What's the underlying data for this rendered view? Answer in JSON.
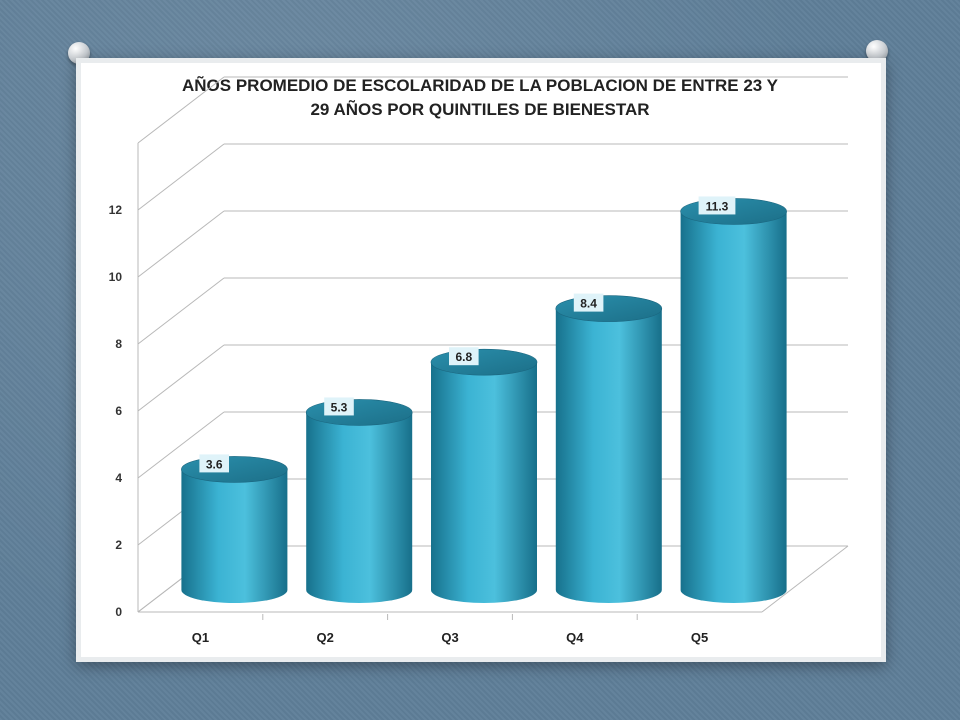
{
  "chart_data": {
    "type": "bar",
    "style": "3d-cylinder",
    "title_lines": [
      "AÑOS PROMEDIO DE ESCOLARIDAD DE LA POBLACION DE ENTRE 23 Y",
      "29 AÑOS POR QUINTILES DE BIENESTAR"
    ],
    "categories": [
      "Q1",
      "Q2",
      "Q3",
      "Q4",
      "Q5"
    ],
    "values": [
      3.6,
      5.3,
      6.8,
      8.4,
      11.3
    ],
    "data_labels": [
      "3.6",
      "5.3",
      "6.8",
      "8.4",
      "11.3"
    ],
    "yticks": [
      "0",
      "2",
      "4",
      "6",
      "8",
      "10",
      "12"
    ],
    "ylim": [
      0,
      14
    ],
    "grid": true,
    "legend": "none",
    "bar_color": "#2fa3c4"
  }
}
